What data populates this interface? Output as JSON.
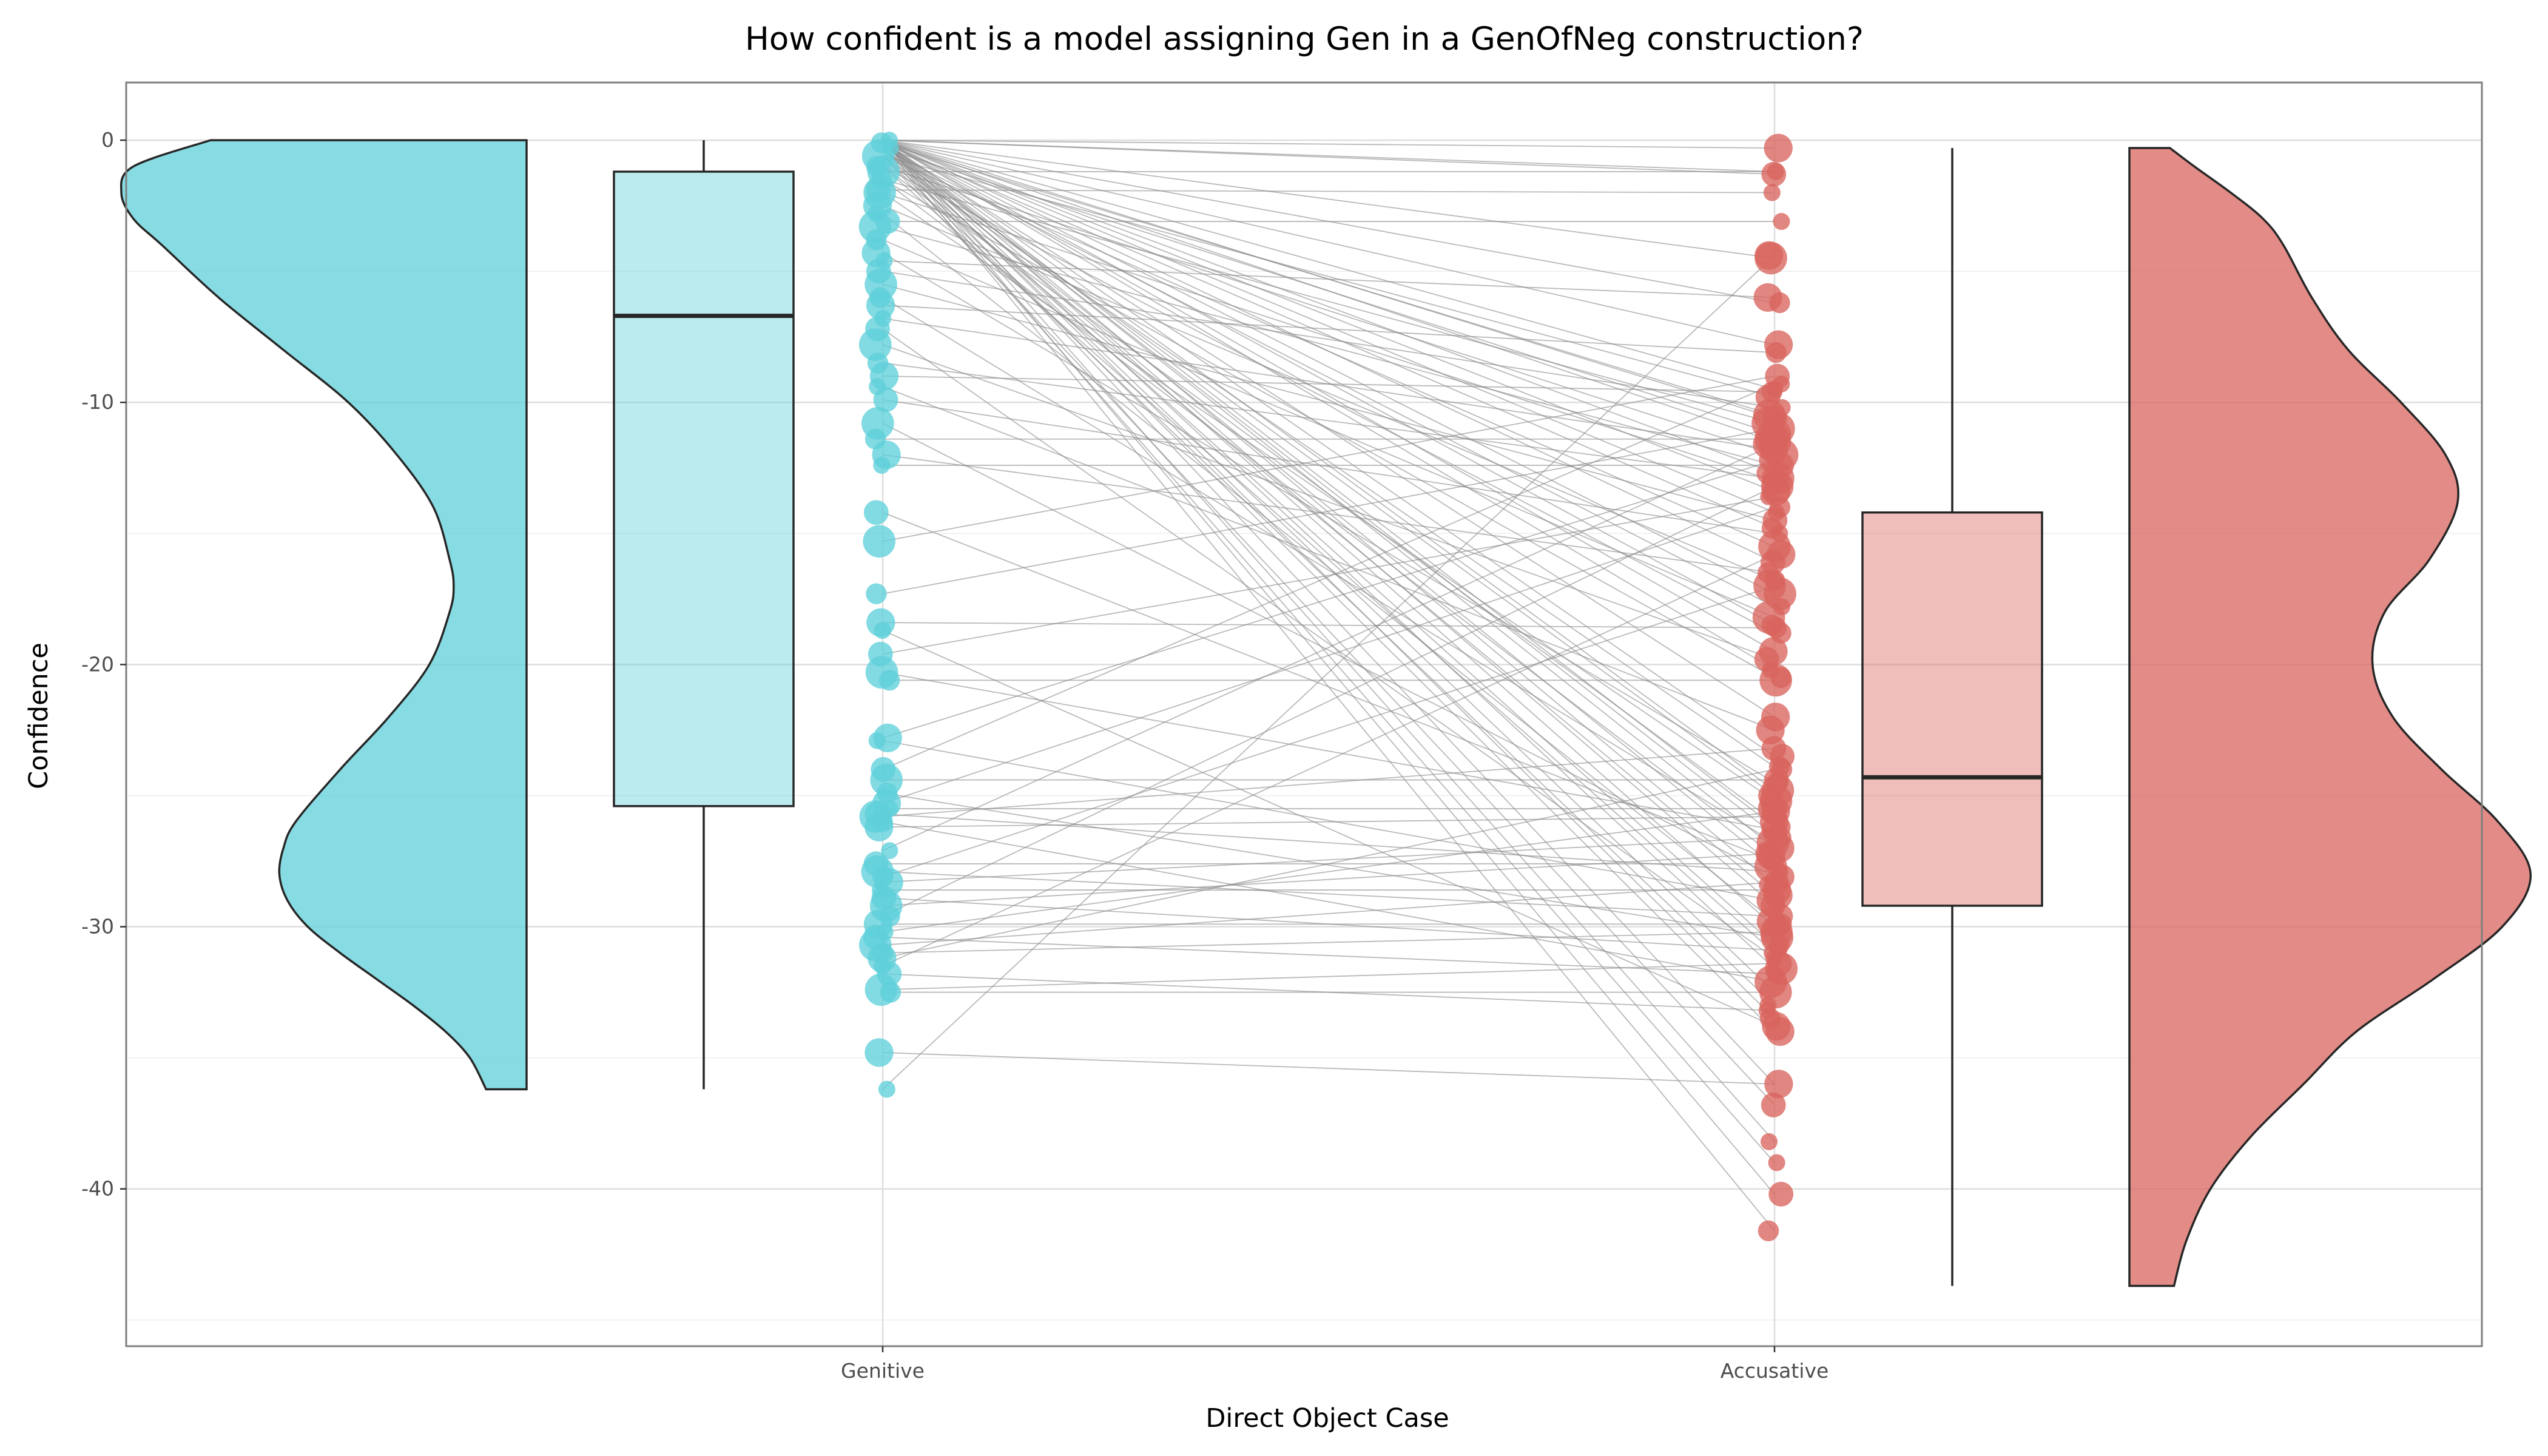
{
  "chart_data": {
    "type": "raincloud",
    "title": "How confident is a model assigning Gen in a GenOfNeg construction?",
    "xlabel": "Direct Object Case",
    "ylabel": "Confidence",
    "categories": [
      "Genitive",
      "Accusative"
    ],
    "ylim": [
      -46,
      2.2
    ],
    "yticks": [
      0,
      -10,
      -20,
      -30,
      -40
    ],
    "ytick_labels": [
      "0",
      "-10",
      "-20",
      "-30",
      "-40"
    ],
    "grid": true,
    "legend": "none",
    "colors": {
      "Genitive": "#5fd0da",
      "Accusative": "#d9645e",
      "line": "#8a8a8a",
      "outline": "#262626"
    },
    "box": {
      "Genitive": {
        "min": -36.2,
        "q1": -25.4,
        "median": -6.7,
        "q3": -1.2,
        "max": 0.0
      },
      "Accusative": {
        "min": -43.7,
        "q1": -29.2,
        "median": -24.3,
        "q3": -14.2,
        "max": -0.3
      }
    },
    "violin": {
      "Genitive": {
        "y": [
          0,
          -1,
          -2,
          -3,
          -4,
          -6,
          -8,
          -10,
          -12,
          -14,
          -16,
          -17,
          -18,
          -20,
          -22,
          -24,
          -26,
          -27,
          -28,
          -29,
          -30,
          -31,
          -32,
          -33,
          -34,
          -35,
          -36.2
        ],
        "density": [
          0.78,
          0.97,
          1.0,
          0.97,
          0.9,
          0.76,
          0.6,
          0.44,
          0.32,
          0.23,
          0.19,
          0.18,
          0.19,
          0.24,
          0.34,
          0.46,
          0.57,
          0.6,
          0.61,
          0.59,
          0.54,
          0.46,
          0.37,
          0.28,
          0.2,
          0.14,
          0.1
        ]
      },
      "Accusative": {
        "y": [
          -0.3,
          -1,
          -2,
          -3,
          -4,
          -6,
          -8,
          -10,
          -12,
          -13.8,
          -16,
          -18,
          -20,
          -22,
          -24,
          -26,
          -28,
          -30,
          -32,
          -34,
          -36,
          -38,
          -40,
          -42,
          -43.7
        ],
        "density": [
          0.1,
          0.16,
          0.25,
          0.33,
          0.38,
          0.45,
          0.54,
          0.67,
          0.78,
          0.81,
          0.74,
          0.63,
          0.6,
          0.65,
          0.77,
          0.91,
          0.99,
          0.92,
          0.75,
          0.56,
          0.43,
          0.3,
          0.2,
          0.14,
          0.11
        ]
      }
    },
    "pairs": [
      [
        0.0,
        -0.3
      ],
      [
        0.0,
        -1.2
      ],
      [
        0.0,
        -1.3
      ],
      [
        0.0,
        -4.5
      ],
      [
        0.0,
        -6.2
      ],
      [
        0.0,
        -7.8
      ],
      [
        0.0,
        -9.5
      ],
      [
        0.0,
        -10.6
      ],
      [
        0.0,
        -11.5
      ],
      [
        0.0,
        -12.7
      ],
      [
        0.0,
        -13.4
      ],
      [
        0.0,
        -14.2
      ],
      [
        0.0,
        -16.1
      ],
      [
        0.0,
        -17.3
      ],
      [
        0.0,
        -18.5
      ],
      [
        0.0,
        -19.5
      ],
      [
        0.0,
        -20.2
      ],
      [
        0.0,
        -23.5
      ],
      [
        0.0,
        -24.8
      ],
      [
        0.0,
        -26.2
      ],
      [
        0.0,
        -27.0
      ],
      [
        0.0,
        -28.4
      ],
      [
        0.0,
        -30.0
      ],
      [
        0.0,
        -31.6
      ],
      [
        0.0,
        -33.5
      ],
      [
        0.0,
        -36.0
      ],
      [
        0.0,
        -38.2
      ],
      [
        0.0,
        -40.2
      ],
      [
        -0.1,
        -10.5
      ],
      [
        -0.1,
        -14.8
      ],
      [
        -0.1,
        -22.0
      ],
      [
        -0.1,
        -26.5
      ],
      [
        -0.1,
        -29.2
      ],
      [
        -0.1,
        -32.5
      ],
      [
        -0.1,
        -41.6
      ],
      [
        -0.3,
        -11.2
      ],
      [
        -0.3,
        -17.8
      ],
      [
        -0.3,
        -25.0
      ],
      [
        -0.3,
        -27.7
      ],
      [
        -0.3,
        -30.7
      ],
      [
        -0.3,
        -34.0
      ],
      [
        -0.3,
        -39.0
      ],
      [
        -0.6,
        -9.8
      ],
      [
        -0.6,
        -15.5
      ],
      [
        -0.6,
        -23.9
      ],
      [
        -0.6,
        -28.8
      ],
      [
        -0.6,
        -33.0
      ],
      [
        -0.6,
        -36.8
      ],
      [
        -1.0,
        -12.0
      ],
      [
        -1.0,
        -18.8
      ],
      [
        -1.0,
        -26.0
      ],
      [
        -1.0,
        -31.0
      ],
      [
        -1.2,
        -1.2
      ],
      [
        -1.5,
        -10.8
      ],
      [
        -1.5,
        -20.5
      ],
      [
        -1.5,
        -27.3
      ],
      [
        -1.9,
        -2.0
      ],
      [
        -2.0,
        -13.0
      ],
      [
        -2.0,
        -25.2
      ],
      [
        -2.5,
        -16.8
      ],
      [
        -2.8,
        -29.8
      ],
      [
        -3.1,
        -3.1
      ],
      [
        -3.3,
        -12.4
      ],
      [
        -3.8,
        -18.2
      ],
      [
        -4.3,
        -24.5
      ],
      [
        -4.6,
        -6.0
      ],
      [
        -5.0,
        -10.2
      ],
      [
        -5.5,
        -14.5
      ],
      [
        -6.0,
        -26.8
      ],
      [
        -6.3,
        -8.1
      ],
      [
        -6.8,
        -11.8
      ],
      [
        -7.2,
        -31.2
      ],
      [
        -7.8,
        -19.8
      ],
      [
        -8.5,
        -12.9
      ],
      [
        -9.0,
        -9.6
      ],
      [
        -9.4,
        -22.5
      ],
      [
        -9.9,
        -15.0
      ],
      [
        -10.8,
        -28.1
      ],
      [
        -11.4,
        -11.4
      ],
      [
        -12.0,
        -16.5
      ],
      [
        -12.4,
        -12.4
      ],
      [
        -14.2,
        -27.5
      ],
      [
        -15.3,
        -9.0
      ],
      [
        -17.3,
        -11.0
      ],
      [
        -18.4,
        -18.6
      ],
      [
        -18.7,
        -33.8
      ],
      [
        -19.6,
        -13.6
      ],
      [
        -20.3,
        -26.3
      ],
      [
        -20.6,
        -20.6
      ],
      [
        -22.8,
        -12.2
      ],
      [
        -22.9,
        -29.0
      ],
      [
        -24.0,
        -9.3
      ],
      [
        -24.4,
        -24.4
      ],
      [
        -24.9,
        -30.4
      ],
      [
        -25.3,
        -14.0
      ],
      [
        -25.5,
        -25.5
      ],
      [
        -25.7,
        -27.9
      ],
      [
        -25.8,
        -23.2
      ],
      [
        -26.0,
        -32.1
      ],
      [
        -26.2,
        -25.8
      ],
      [
        -27.1,
        -11.6
      ],
      [
        -27.6,
        -27.6
      ],
      [
        -27.9,
        -29.6
      ],
      [
        -28.1,
        -17.0
      ],
      [
        -28.3,
        -26.6
      ],
      [
        -28.6,
        -28.6
      ],
      [
        -28.9,
        -30.9
      ],
      [
        -29.2,
        -27.2
      ],
      [
        -29.6,
        -13.2
      ],
      [
        -29.9,
        -29.9
      ],
      [
        -30.2,
        -25.6
      ],
      [
        -30.4,
        -31.8
      ],
      [
        -30.7,
        -28.3
      ],
      [
        -31.0,
        -30.2
      ],
      [
        -31.2,
        -24.0
      ],
      [
        -31.5,
        -15.8
      ],
      [
        -31.8,
        -33.2
      ],
      [
        -32.4,
        -31.4
      ],
      [
        -32.5,
        -32.5
      ],
      [
        -34.8,
        -36.0
      ],
      [
        -36.2,
        -4.4
      ]
    ]
  }
}
